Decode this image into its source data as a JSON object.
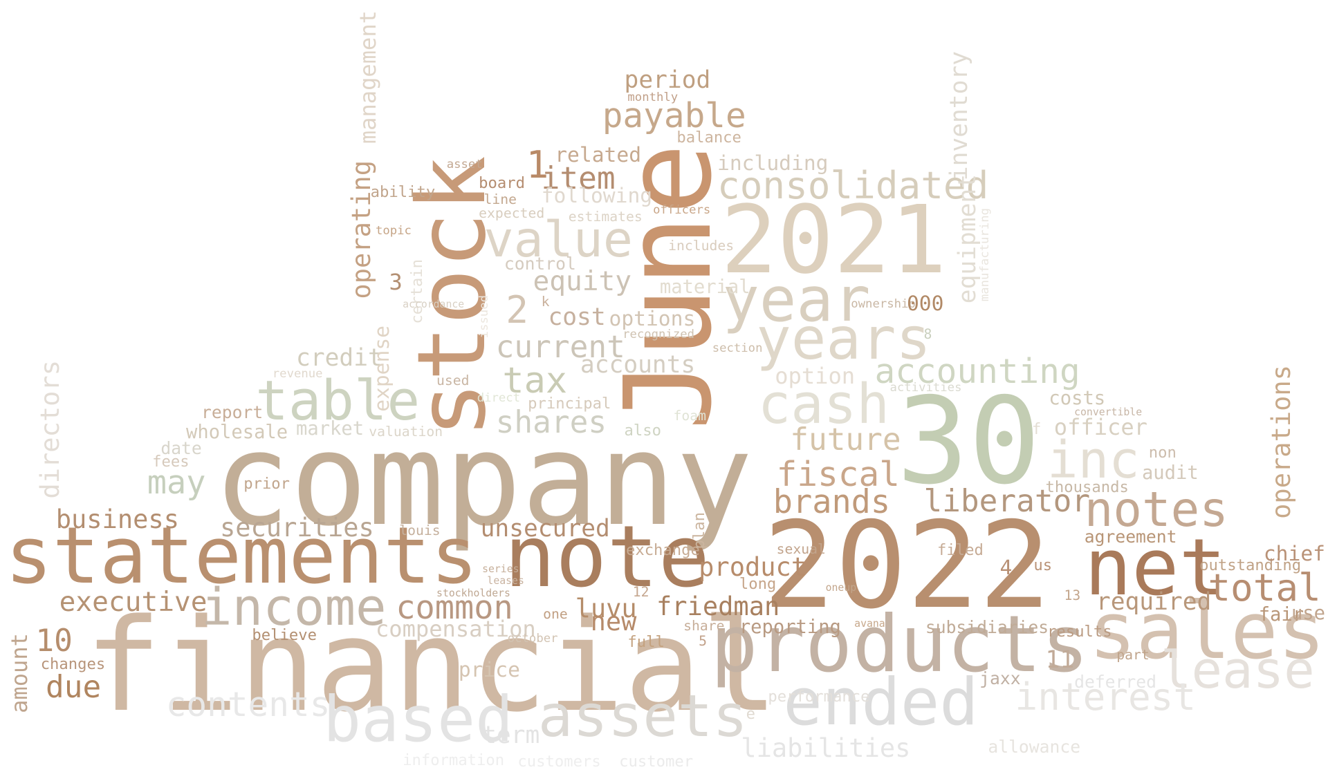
{
  "palette": {
    "brown": "#b17c54",
    "tan": "#c9ad92",
    "beige": "#dccbb6",
    "sage": "#c3cdb3",
    "gray": "#dadada",
    "light": "#e9e3dc"
  },
  "words": [
    {
      "t": "company",
      "c": "#c2ae97"
    },
    {
      "t": "financial",
      "c": "#cfb8a3"
    },
    {
      "t": "2022",
      "c": "#b88f6f"
    },
    {
      "t": "June",
      "c": "#c9956f"
    },
    {
      "t": "30",
      "c": "#c3cdb3"
    },
    {
      "t": "2021",
      "c": "#ddd0bd"
    },
    {
      "t": "stock",
      "c": "#c79a78"
    },
    {
      "t": "statements",
      "c": "#b9906f"
    },
    {
      "t": "note",
      "c": "#a97e5e"
    },
    {
      "t": "products",
      "c": "#c3b2a4"
    },
    {
      "t": "sales",
      "c": "#d4c1b0"
    },
    {
      "t": "net",
      "c": "#a97a5a"
    },
    {
      "t": "year",
      "c": "#d9cfbf"
    },
    {
      "t": "years",
      "c": "#dfd7c9"
    },
    {
      "t": "ended",
      "c": "#dcdcdc"
    },
    {
      "t": "income",
      "c": "#c4b7a9"
    },
    {
      "t": "table",
      "c": "#cdd3c0"
    },
    {
      "t": "value",
      "c": "#ddd4c6"
    },
    {
      "t": "cash",
      "c": "#e3e0d5"
    },
    {
      "t": "assets",
      "c": "#dcd9d4"
    },
    {
      "t": "based",
      "c": "#e3e3e3"
    },
    {
      "t": "lease",
      "c": "#e6e1dc"
    },
    {
      "t": "notes",
      "c": "#c4a892"
    },
    {
      "t": "inc",
      "c": "#e4ded3"
    },
    {
      "t": "consolidated",
      "c": "#d6cdbb"
    },
    {
      "t": "accounting",
      "c": "#cfd6c2"
    },
    {
      "t": "payable",
      "c": "#c6a88b"
    },
    {
      "t": "total",
      "c": "#b78e72"
    },
    {
      "t": "common",
      "c": "#b89882"
    },
    {
      "t": "interest",
      "c": "#e8e6e3"
    },
    {
      "t": "liberator",
      "c": "#b3977e"
    },
    {
      "t": "brands",
      "c": "#c09a7a"
    },
    {
      "t": "fiscal",
      "c": "#c9a68a"
    },
    {
      "t": "future",
      "c": "#d5c3a8"
    },
    {
      "t": "tax",
      "c": "#c9cbb4"
    },
    {
      "t": "current",
      "c": "#ccc5b8"
    },
    {
      "t": "shares",
      "c": "#cfcfc3"
    },
    {
      "t": "securities",
      "c": "#b8a592"
    },
    {
      "t": "business",
      "c": "#b38e70"
    },
    {
      "t": "executive",
      "c": "#b59273"
    },
    {
      "t": "unsecured",
      "c": "#b38d70"
    },
    {
      "t": "product",
      "c": "#b78c6b"
    },
    {
      "t": "friedman",
      "c": "#a8805f"
    },
    {
      "t": "luvu",
      "c": "#b58c69"
    },
    {
      "t": "required",
      "c": "#b8977a"
    },
    {
      "t": "operations",
      "c": "#c8a989"
    },
    {
      "t": "directors",
      "c": "#e3ddd6"
    },
    {
      "t": "management",
      "c": "#e0d5c8"
    },
    {
      "t": "inventory",
      "c": "#e0dbd2"
    },
    {
      "t": "equipment",
      "c": "#e2ddd3"
    },
    {
      "t": "operating",
      "c": "#c4a183"
    },
    {
      "t": "item",
      "c": "#b48d70"
    },
    {
      "t": "period",
      "c": "#bf9f80"
    },
    {
      "t": "equity",
      "c": "#ccc2b4"
    },
    {
      "t": "contents",
      "c": "#e8e8e8"
    },
    {
      "t": "may",
      "c": "#c6cfbd"
    },
    {
      "t": "due",
      "c": "#b0855f"
    },
    {
      "t": "amount",
      "c": "#bfa58e"
    },
    {
      "t": "cost",
      "c": "#c6b09e"
    },
    {
      "t": "options",
      "c": "#d2c4b3"
    },
    {
      "t": "accounts",
      "c": "#d4cdc1"
    },
    {
      "t": "credit",
      "c": "#d2cdbd"
    },
    {
      "t": "expense",
      "c": "#e0d4c5"
    },
    {
      "t": "liabilities",
      "c": "#e5e5e5"
    },
    {
      "t": "compensation",
      "c": "#d8cec2"
    },
    {
      "t": "price",
      "c": "#d5c4b1"
    },
    {
      "t": "new",
      "c": "#b68a69"
    },
    {
      "t": "reporting",
      "c": "#b89a82"
    },
    {
      "t": "subsidiaries",
      "c": "#c0ab97"
    },
    {
      "t": "agreement",
      "c": "#b89576"
    },
    {
      "t": "outstanding",
      "c": "#c0a286"
    },
    {
      "t": "costs",
      "c": "#d1c8b6"
    },
    {
      "t": "officer",
      "c": "#d8d0c1"
    },
    {
      "t": "audit",
      "c": "#d4c9ba"
    },
    {
      "t": "thousands",
      "c": "#c7b8a6"
    },
    {
      "t": "chief",
      "c": "#b99277"
    },
    {
      "t": "fair",
      "c": "#b99779"
    },
    {
      "t": "use",
      "c": "#c1a58d"
    },
    {
      "t": "deferred",
      "c": "#e5e5e5"
    },
    {
      "t": "performance",
      "c": "#e3dfda"
    },
    {
      "t": "jaxx",
      "c": "#c0b0a3"
    },
    {
      "t": "option",
      "c": "#e5ddd3"
    },
    {
      "t": "related",
      "c": "#c6a98f"
    },
    {
      "t": "including",
      "c": "#d6cbbd"
    },
    {
      "t": "following",
      "c": "#e0d8ce"
    },
    {
      "t": "control",
      "c": "#d5cbbf"
    },
    {
      "t": "material",
      "c": "#e2dccf"
    },
    {
      "t": "balance",
      "c": "#cdb59f"
    },
    {
      "t": "board",
      "c": "#b58d70"
    },
    {
      "t": "ability",
      "c": "#c1a58c"
    },
    {
      "t": "wholesale",
      "c": "#d3c9b8"
    },
    {
      "t": "market",
      "c": "#d8d6cc"
    },
    {
      "t": "report",
      "c": "#c8ae98"
    },
    {
      "t": "prior",
      "c": "#c1a58c"
    },
    {
      "t": "date",
      "c": "#d8d5cb"
    },
    {
      "t": "fees",
      "c": "#d6c9bb"
    },
    {
      "t": "changes",
      "c": "#b8957b"
    },
    {
      "t": "believe",
      "c": "#b38f71"
    },
    {
      "t": "louis",
      "c": "#c5b09d"
    },
    {
      "t": "exchange",
      "c": "#c7ab93"
    },
    {
      "t": "plan",
      "c": "#cbb59f"
    },
    {
      "t": "long",
      "c": "#c6a58a"
    },
    {
      "t": "sexual",
      "c": "#c2a48c"
    },
    {
      "t": "filed",
      "c": "#c6ab95"
    },
    {
      "t": "results",
      "c": "#ba9b82"
    },
    {
      "t": "part",
      "c": "#c0a48b"
    },
    {
      "t": "term",
      "c": "#e3e3e3"
    },
    {
      "t": "allowance",
      "c": "#e7e4df"
    },
    {
      "t": "information",
      "c": "#eeeeee"
    },
    {
      "t": "customers",
      "c": "#eeeeee"
    },
    {
      "t": "customer",
      "c": "#ebebeb"
    },
    {
      "t": "full",
      "c": "#c4a27f"
    },
    {
      "t": "share",
      "c": "#c7ae99"
    },
    {
      "t": "principal",
      "c": "#d6cabb"
    },
    {
      "t": "valuation",
      "c": "#dcd6ca"
    },
    {
      "t": "also",
      "c": "#cfd4c3"
    },
    {
      "t": "foam",
      "c": "#e0e3d5"
    },
    {
      "t": "recognized",
      "c": "#cfc2b1"
    },
    {
      "t": "certain",
      "c": "#e5e0d7"
    },
    {
      "t": "issued",
      "c": "#ece6de"
    },
    {
      "t": "ownership",
      "c": "#c9b7a4"
    },
    {
      "t": "section",
      "c": "#cdbdaa"
    },
    {
      "t": "activities",
      "c": "#dadad0"
    },
    {
      "t": "manufacturing",
      "c": "#e9e5de"
    },
    {
      "t": "estimates",
      "c": "#dcd3c6"
    },
    {
      "t": "officers",
      "c": "#c9a688"
    },
    {
      "t": "includes",
      "c": "#d9ccbd"
    },
    {
      "t": "expected",
      "c": "#d8cdbe"
    },
    {
      "t": "line",
      "c": "#c3a88f"
    },
    {
      "t": "topic",
      "c": "#c6a587"
    },
    {
      "t": "accordance",
      "c": "#d8d0c4"
    },
    {
      "t": "used",
      "c": "#c9b6a4"
    },
    {
      "t": "direct",
      "c": "#e1e6d6"
    },
    {
      "t": "revenue",
      "c": "#e1d9ce"
    },
    {
      "t": "oneup",
      "c": "#c3a68c"
    },
    {
      "t": "avana",
      "c": "#c6a78a"
    },
    {
      "t": "us",
      "c": "#b99276"
    },
    {
      "t": "series",
      "c": "#c6af9a"
    },
    {
      "t": "leases",
      "c": "#c9b3a0"
    },
    {
      "t": "stockholders",
      "c": "#bfa893"
    },
    {
      "t": "one",
      "c": "#c19f82"
    },
    {
      "t": "october",
      "c": "#d2c3b2"
    },
    {
      "t": "monthly",
      "c": "#c1a089"
    },
    {
      "t": "asset",
      "c": "#c3a892"
    },
    {
      "t": "convertible",
      "c": "#c7b6a6"
    },
    {
      "t": "non",
      "c": "#ccbcac"
    },
    {
      "t": "000",
      "c": "#b18966"
    },
    {
      "t": "1",
      "c": "#b98a67"
    },
    {
      "t": "2",
      "c": "#d3c4b3"
    },
    {
      "t": "3",
      "c": "#b38f72"
    },
    {
      "t": "4",
      "c": "#b89075"
    },
    {
      "t": "5",
      "c": "#c1a088"
    },
    {
      "t": "8",
      "c": "#c9cfbd"
    },
    {
      "t": "10",
      "c": "#b58d6c"
    },
    {
      "t": "11",
      "c": "#c1aa97"
    },
    {
      "t": "12",
      "c": "#c5a78f"
    },
    {
      "t": "13",
      "c": "#c3a58b"
    },
    {
      "t": "k",
      "c": "#c9b09b"
    },
    {
      "t": "f",
      "c": "#e3ddd3"
    },
    {
      "t": "e",
      "c": "#e0dad1"
    }
  ]
}
